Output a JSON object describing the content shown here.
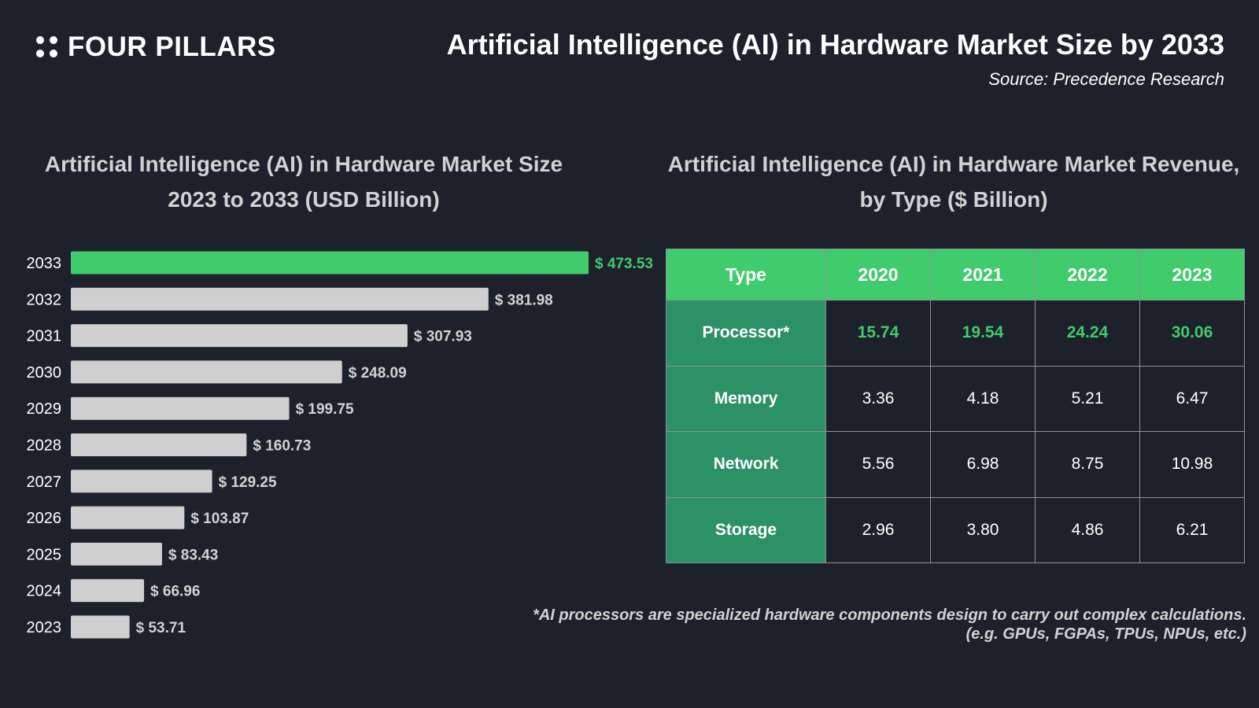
{
  "brand": {
    "name": "FOUR PILLARS"
  },
  "header": {
    "title": "Artificial Intelligence (AI) in Hardware Market Size by 2033",
    "source": "Source: Precedence Research"
  },
  "left_panel": {
    "title_line1": "Artificial Intelligence (AI) in Hardware Market Size",
    "title_line2": "2023 to 2033 (USD Billion)"
  },
  "right_panel": {
    "title_line1": "Artificial Intelligence (AI) in Hardware Market Revenue,",
    "title_line2": "by Type ($ Billion)"
  },
  "colors": {
    "highlight": "#40cc6c",
    "bar": "#cfcfcf",
    "background": "#1c212b",
    "type_cell": "#2c9164"
  },
  "chart_data": {
    "type": "bar",
    "orientation": "horizontal",
    "title": "Artificial Intelligence (AI) in Hardware Market Size 2023 to 2033 (USD Billion)",
    "categories": [
      "2033",
      "2032",
      "2031",
      "2030",
      "2029",
      "2028",
      "2027",
      "2026",
      "2025",
      "2024",
      "2023"
    ],
    "values": [
      473.53,
      381.98,
      307.93,
      248.09,
      199.75,
      160.73,
      129.25,
      103.87,
      83.43,
      66.96,
      53.71
    ],
    "labels": [
      "$ 473.53",
      "$ 381.98",
      "$ 307.93",
      "$ 248.09",
      "$ 199.75",
      "$ 160.73",
      "$ 129.25",
      "$ 103.87",
      "$ 83.43",
      "$ 66.96",
      "$ 53.71"
    ],
    "highlight_index": 0,
    "xlim": [
      0,
      473.53
    ]
  },
  "table": {
    "headers": [
      "Type",
      "2020",
      "2021",
      "2022",
      "2023"
    ],
    "rows": [
      {
        "type": "Processor*",
        "values": [
          "15.74",
          "19.54",
          "24.24",
          "30.06"
        ]
      },
      {
        "type": "Memory",
        "values": [
          "3.36",
          "4.18",
          "5.21",
          "6.47"
        ]
      },
      {
        "type": "Network",
        "values": [
          "5.56",
          "6.98",
          "8.75",
          "10.98"
        ]
      },
      {
        "type": "Storage",
        "values": [
          "2.96",
          "3.80",
          "4.86",
          "6.21"
        ]
      }
    ]
  },
  "footnote": {
    "line1": "*AI processors are specialized hardware components design to carry out complex calculations.",
    "line2": "(e.g. GPUs, FGPAs, TPUs, NPUs, etc.)"
  }
}
